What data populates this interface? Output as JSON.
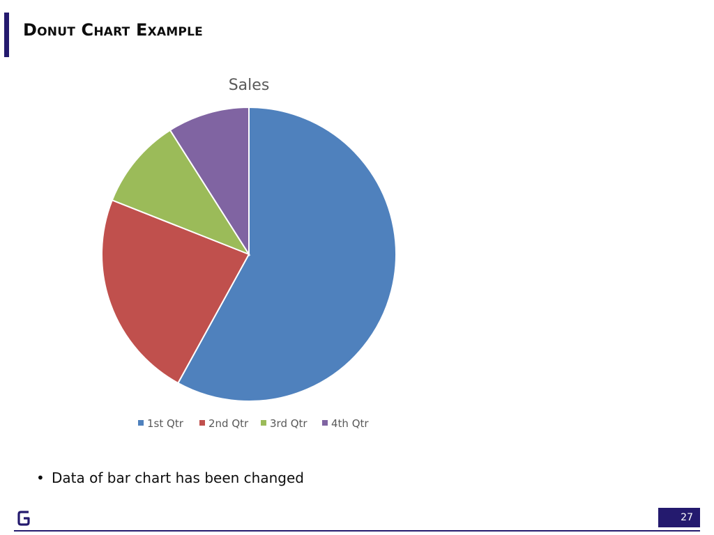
{
  "slide": {
    "title": "Donut Chart Example",
    "bullets": [
      "Data of bar chart has been changed"
    ],
    "page_number": "27"
  },
  "colors": {
    "accent": "#241a6e"
  },
  "chart_data": {
    "type": "pie",
    "title": "Sales",
    "categories": [
      "1st Qtr",
      "2nd Qtr",
      "3rd Qtr",
      "4th Qtr"
    ],
    "values": [
      58,
      23,
      10,
      9
    ],
    "colors": [
      "#4f81bd",
      "#c0504d",
      "#9bbb59",
      "#8064a2"
    ],
    "legend_position": "bottom"
  }
}
